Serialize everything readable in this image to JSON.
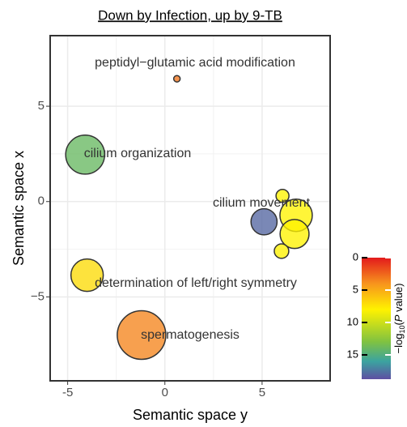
{
  "chart_data": {
    "type": "bubble",
    "title": "Down by Infection, up by 9-TB",
    "xlabel": "Semantic space y",
    "ylabel": "Semantic space x",
    "x": [
      0.62,
      -4.1,
      5.1,
      6.05,
      6.75,
      6.67,
      6.0,
      -4.0,
      -1.2
    ],
    "y": [
      6.44,
      2.46,
      -1.06,
      0.3,
      -0.72,
      -1.7,
      -2.6,
      -3.86,
      -7.0
    ],
    "sizes": [
      1.6,
      58,
      26,
      6.4,
      40,
      32,
      8,
      40,
      90
    ],
    "colors": [
      3,
      14,
      18,
      8,
      8,
      8,
      8,
      7,
      3.5
    ],
    "labels": [
      "peptidyl−glutamic acid modification",
      "cilium organization",
      "cilium movement",
      null,
      null,
      null,
      null,
      "determination of left/right symmetry",
      "spermatogenesis"
    ],
    "xlim": [
      -5.9,
      8.5
    ],
    "ylim": [
      -9.4,
      8.7
    ],
    "xticks": [
      -5,
      0,
      5
    ],
    "yticks": [
      {
        "value": -5,
        "label": "−5"
      },
      0,
      5
    ],
    "grid": true,
    "colorbar": {
      "title": {
        "pre": "−log",
        "sub": "10",
        "open": "(",
        "italic": "P",
        "post": " value)"
      },
      "lim": [
        0,
        18.75
      ],
      "ticks": [
        0,
        5,
        10,
        15
      ],
      "scale": [
        [
          0,
          "#e31a1c"
        ],
        [
          4,
          "#f7941d"
        ],
        [
          8,
          "#fff200"
        ],
        [
          13,
          "#7fc241"
        ],
        [
          16,
          "#3ba3a0"
        ],
        [
          18.75,
          "#5e4fa2"
        ]
      ]
    }
  }
}
